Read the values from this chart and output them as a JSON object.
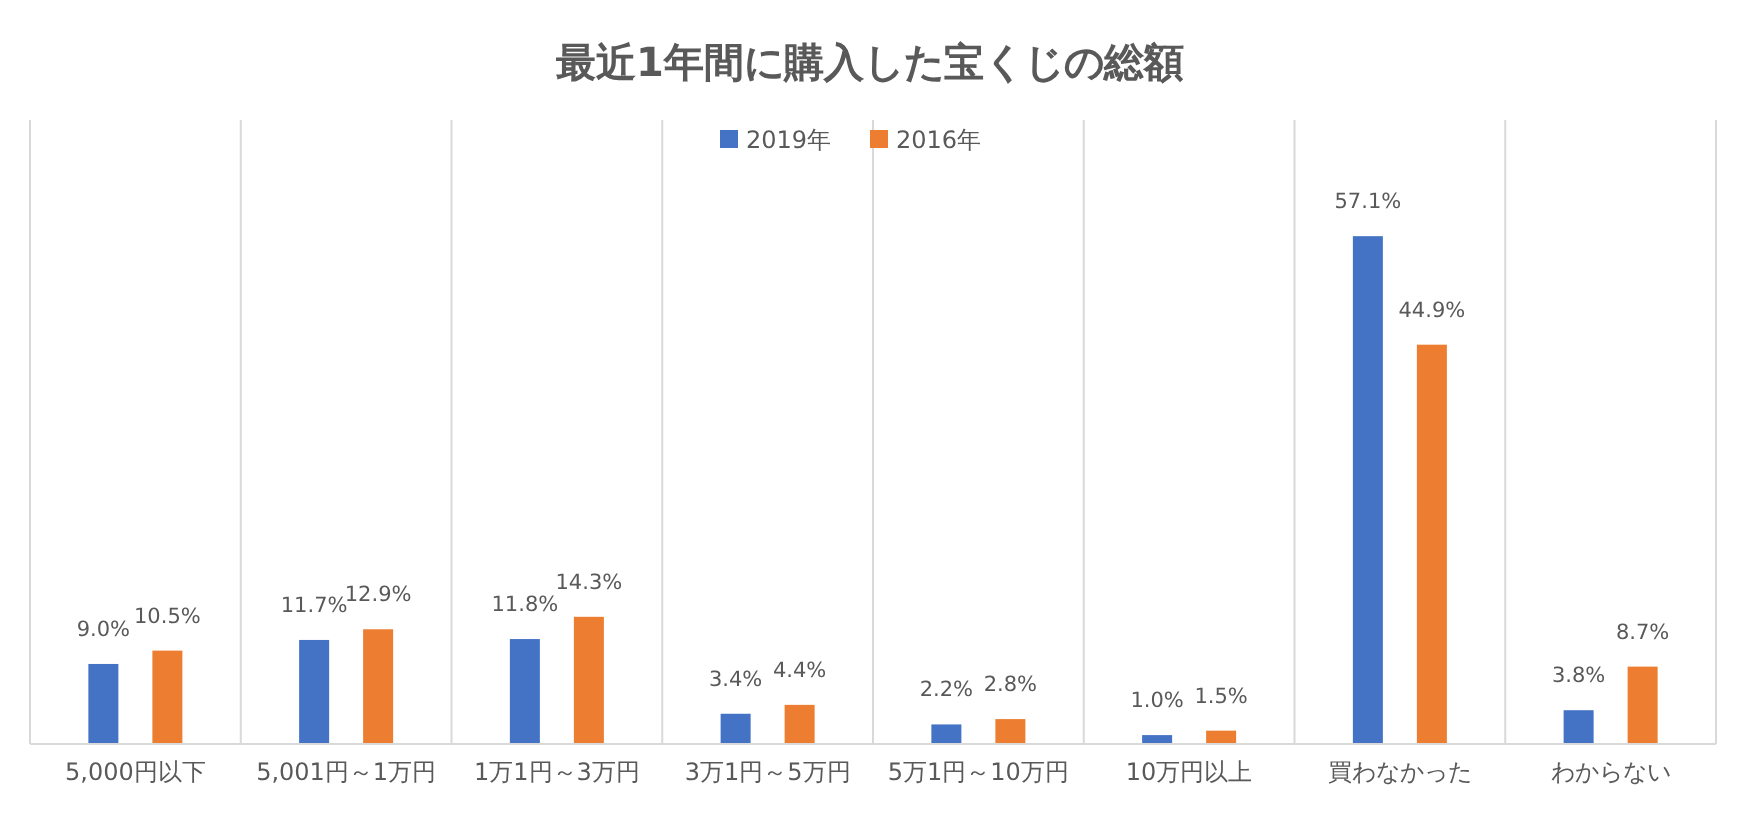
{
  "chart_data": {
    "type": "bar",
    "title": "最近1年間に購入した宝くじの総額",
    "categories": [
      "5,000円以下",
      "5,001円～1万円",
      "1万1円～3万円",
      "3万1円～5万円",
      "5万1円～10万円",
      "10万円以上",
      "買わなかった",
      "わからない"
    ],
    "series": [
      {
        "name": "2019年",
        "color": "#4472c4",
        "values": [
          9.0,
          11.7,
          11.8,
          3.4,
          2.2,
          1.0,
          57.1,
          3.8
        ],
        "value_labels": [
          "9.0%",
          "11.7%",
          "11.8%",
          "3.4%",
          "2.2%",
          "1.0%",
          "57.1%",
          "3.8%"
        ]
      },
      {
        "name": "2016年",
        "color": "#ed7d31",
        "values": [
          10.5,
          12.9,
          14.3,
          4.4,
          2.8,
          1.5,
          44.9,
          8.7
        ],
        "value_labels": [
          "10.5%",
          "12.9%",
          "14.3%",
          "4.4%",
          "2.8%",
          "1.5%",
          "44.9%",
          "8.7%"
        ]
      }
    ],
    "grid": "x",
    "legend": "top"
  }
}
